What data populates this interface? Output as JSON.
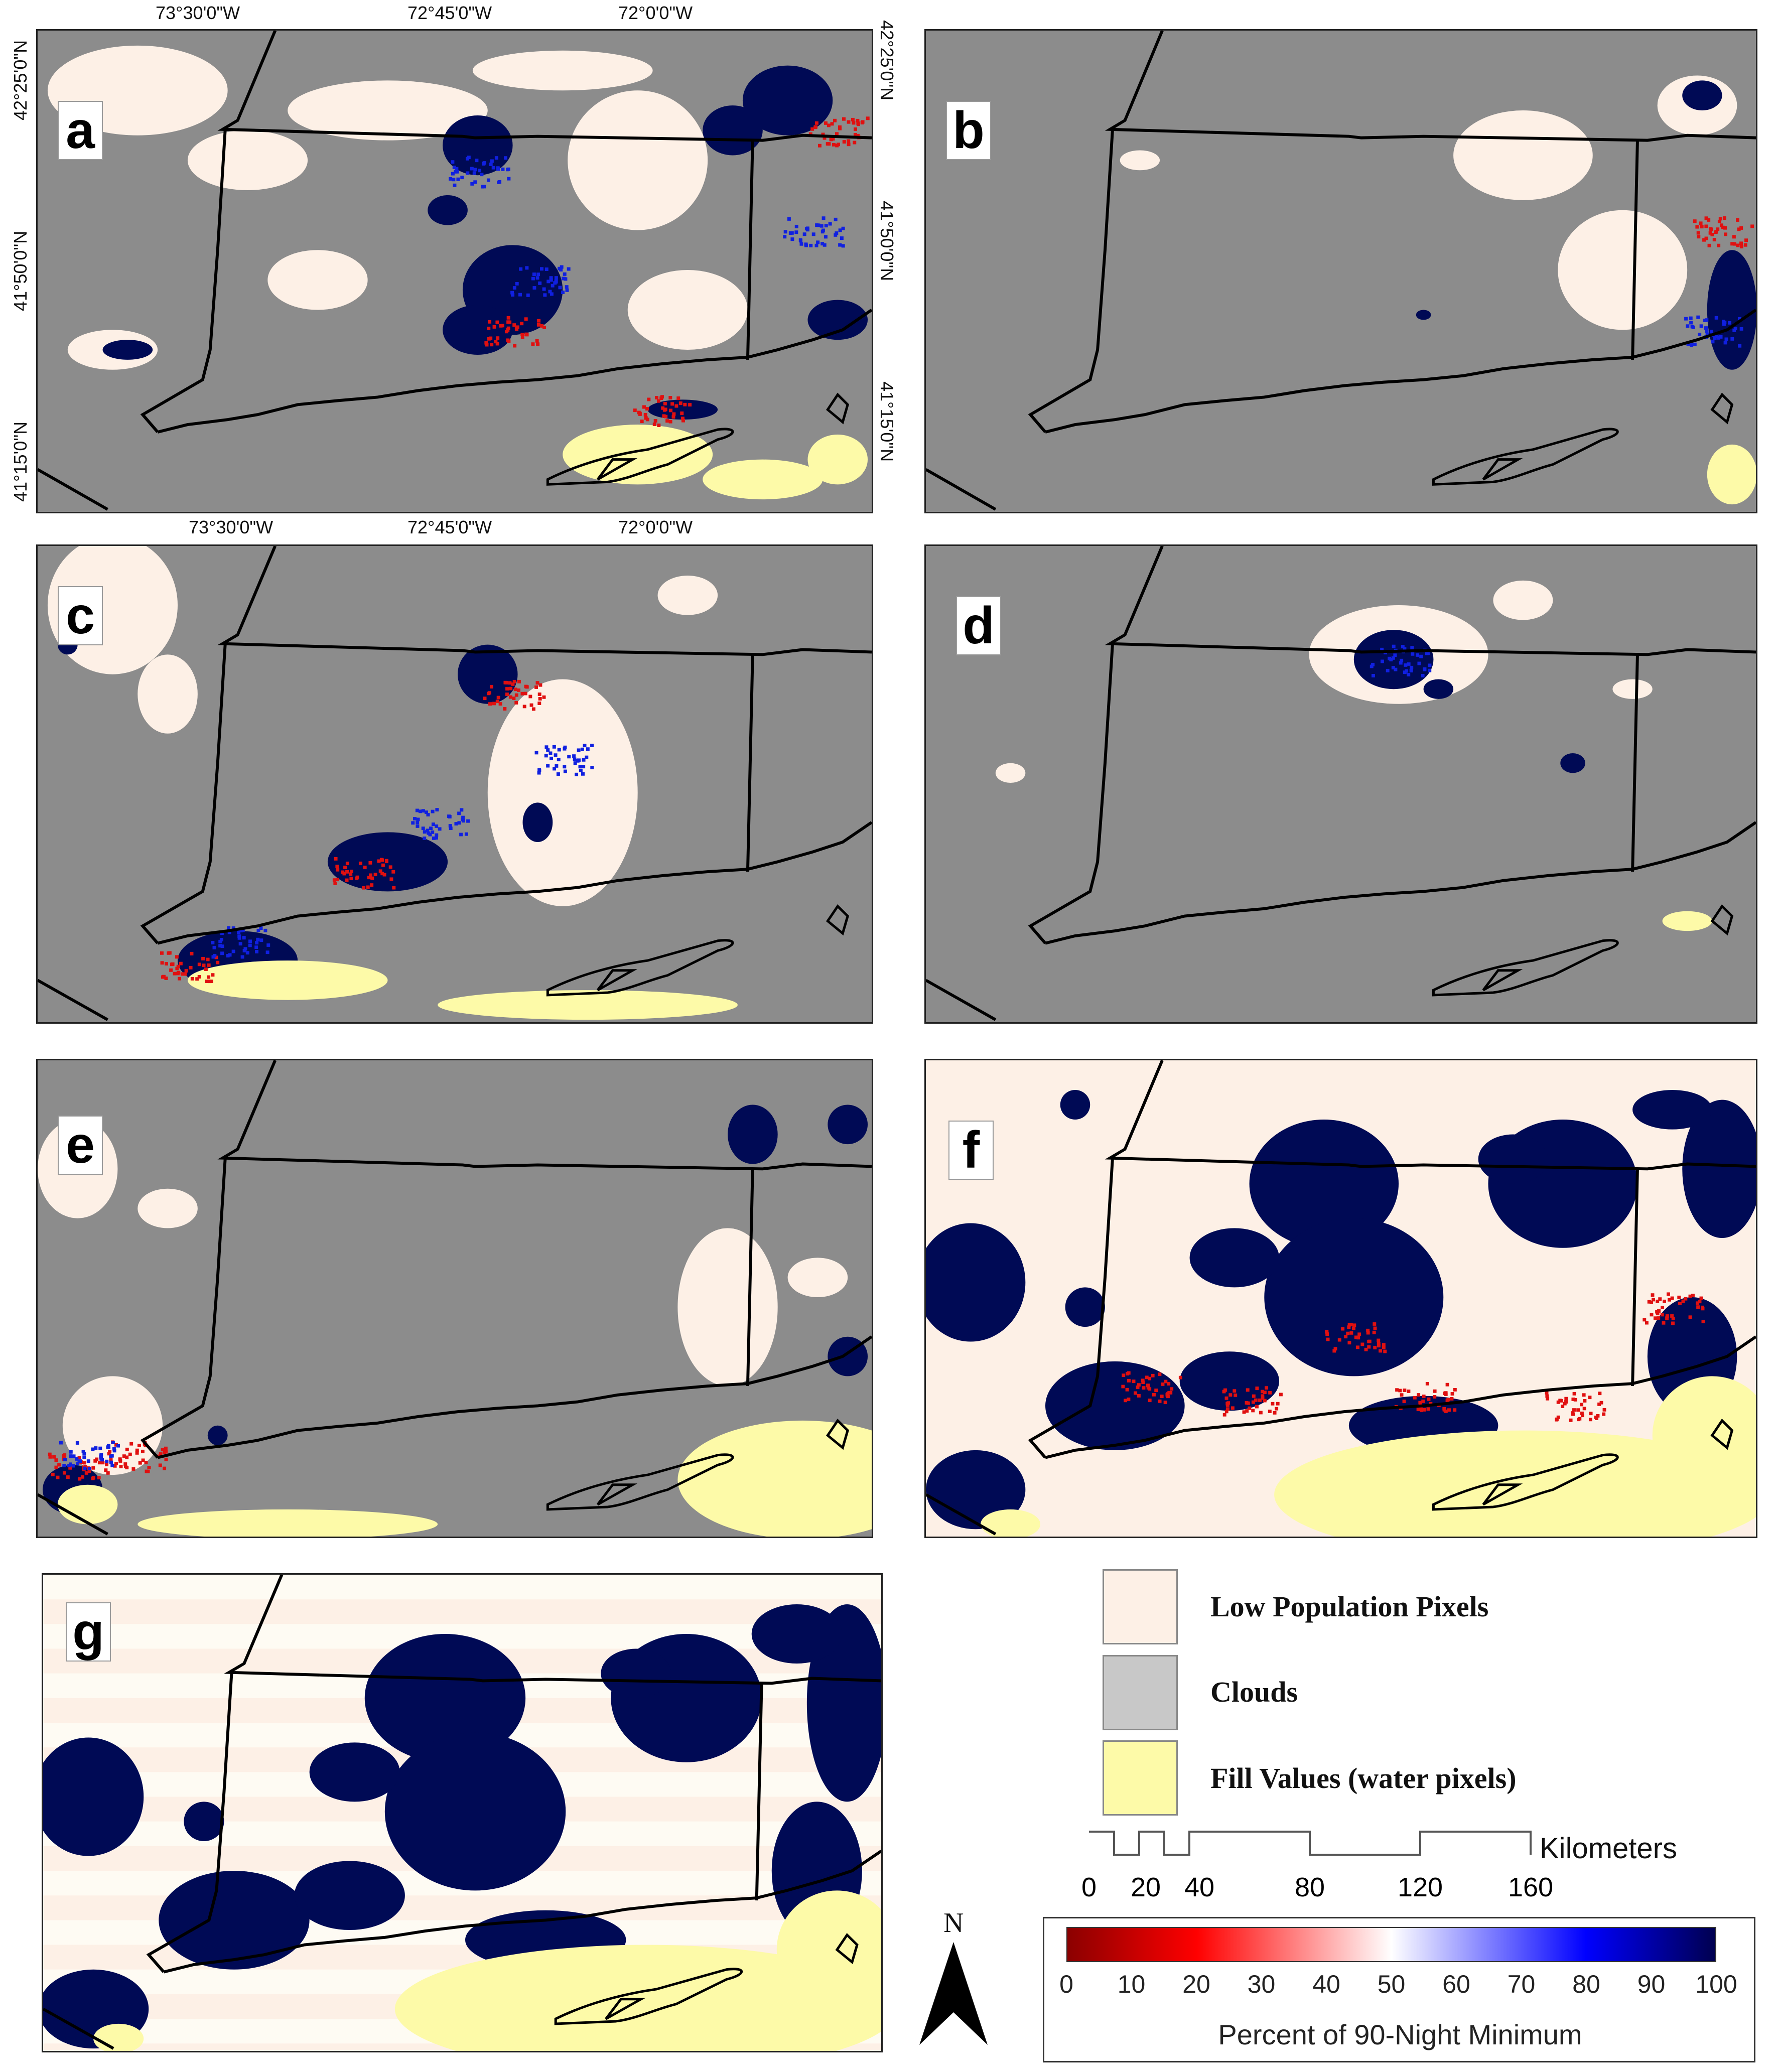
{
  "figure": {
    "panels": [
      {
        "id": "a",
        "label": "a",
        "content": "clouds with scattered low population pixels and high-value pixels"
      },
      {
        "id": "b",
        "label": "b",
        "content": "mostly clouds"
      },
      {
        "id": "c",
        "label": "c",
        "content": "clouds with coastal red/blue pixels"
      },
      {
        "id": "d",
        "label": "d",
        "content": "mostly clouds"
      },
      {
        "id": "e",
        "label": "e",
        "content": "mostly clouds"
      },
      {
        "id": "f",
        "label": "f",
        "content": "clear sky, low population pixels and urban areas"
      },
      {
        "id": "g",
        "label": "g",
        "content": "clear sky, low population pixels and urban areas"
      }
    ],
    "top_ticks": [
      "73°30'0\"W",
      "72°45'0\"W",
      "72°0'0\"W"
    ],
    "left_ticks": [
      "42°25'0\"N",
      "41°50'0\"N",
      "41°15'0\"N"
    ],
    "right_ticks": [
      "42°25'0\"N",
      "41°50'0\"N",
      "41°15'0\"N"
    ]
  },
  "legend": {
    "items": [
      {
        "label": "Low Population Pixels",
        "color": "#fdf0e6"
      },
      {
        "label": "Clouds",
        "color": "#c8c8c8"
      },
      {
        "label": "Fill Values (water pixels)",
        "color": "#fdfaa8"
      }
    ]
  },
  "scale_bar": {
    "unit": "Kilometers",
    "ticks": [
      "0",
      "20",
      "40",
      "80",
      "120",
      "160"
    ]
  },
  "north_arrow": {
    "label": "N"
  },
  "colorbar": {
    "title": "Percent of 90-Night Minimum",
    "ticks": [
      "0",
      "10",
      "20",
      "30",
      "40",
      "50",
      "60",
      "70",
      "80",
      "90",
      "100"
    ],
    "colors": [
      "#8b0000",
      "#ff0000",
      "#ffffff",
      "#0000ff",
      "#000050"
    ]
  },
  "colors": {
    "cloud": "#8c8c8c",
    "low_pop": "#fdf0e6",
    "water": "#fdfaa8",
    "urban": "#000a55",
    "red": "#e01010",
    "blue": "#1020e0",
    "border": "#000000"
  }
}
